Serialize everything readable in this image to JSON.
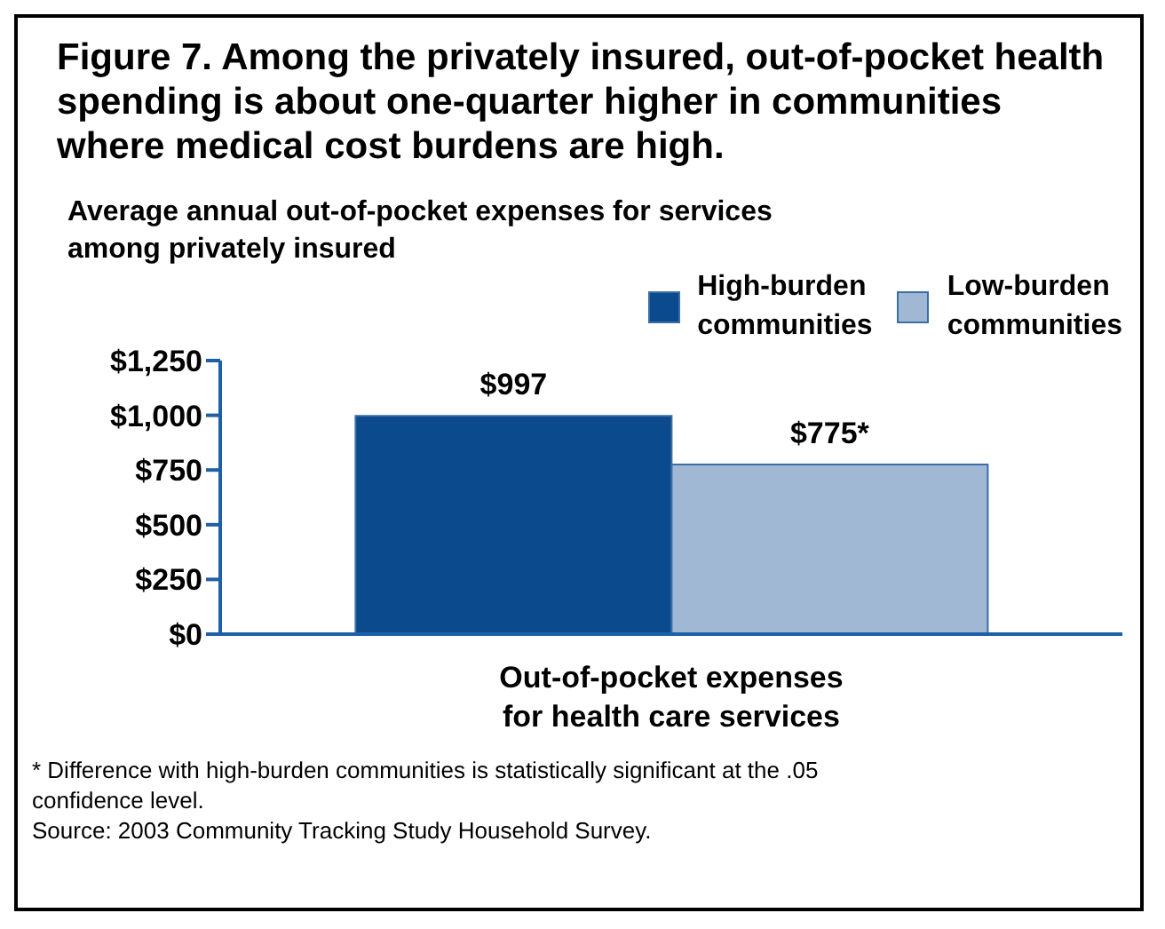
{
  "chart_data": {
    "type": "bar",
    "title": "Figure 7. Among the privately insured, out-of-pocket health spending is about one-quarter higher in communities where medical cost burdens are high.",
    "ylabel": "Average annual out-of-pocket expenses for services among privately insured",
    "categories": [
      "Out-of-pocket expenses for health care services"
    ],
    "series": [
      {
        "name": "High-burden communities",
        "color": "#0b4a8c",
        "values": [
          997
        ],
        "value_labels": [
          "$997"
        ]
      },
      {
        "name": "Low-burden communities",
        "color": "#a0b8d4",
        "values": [
          775
        ],
        "value_labels": [
          "$775*"
        ]
      }
    ],
    "ylim": [
      0,
      1250
    ],
    "yticks": [
      {
        "value": 0,
        "label": "$0"
      },
      {
        "value": 250,
        "label": "$250"
      },
      {
        "value": 500,
        "label": "$500"
      },
      {
        "value": 750,
        "label": "$750"
      },
      {
        "value": 1000,
        "label": "$1,000"
      },
      {
        "value": 1250,
        "label": "$1,250"
      }
    ],
    "legend": "top right",
    "grid": false,
    "annotations": [
      "* Difference with high-burden communities is statistically significant at the .05 confidence level.",
      "Source: 2003 Community Tracking Study Household Survey."
    ]
  }
}
